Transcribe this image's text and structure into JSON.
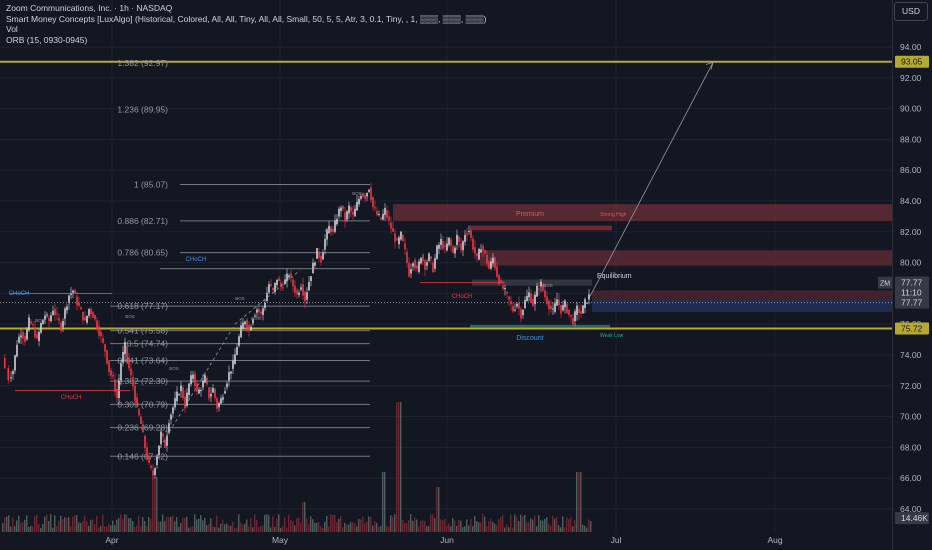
{
  "legend": {
    "title": "Zoom Communications, Inc. · 1h · NASDAQ",
    "indicator1": "Smart Money Concepts [LuxAlgo] (Historical, Colored, All, All, Tiny, All, All, Small, 50, 5, 5, Atr, 3, 0.1, Tiny, , 1, ▒▒▒, ▒▒▒, ▒▒▒)",
    "indicator2": "Vol",
    "indicator3": "ORB (15, 0930-0945)"
  },
  "currency": "USD",
  "colors": {
    "background": "#131722",
    "grid": "#1e222d",
    "up": "#d1d4dc",
    "down": "#f23645",
    "fib": "#9598a1",
    "key_level": "#b5a833",
    "premium_zone": "#5d2b33",
    "discount_zone": "#1f2d52",
    "bos": "#26a69a",
    "choch": "#f23645"
  },
  "price_axis": {
    "ticks": [
      "94.00",
      "92.00",
      "90.00",
      "88.00",
      "86.00",
      "84.00",
      "82.00",
      "80.00",
      "78.00",
      "76.00",
      "74.00",
      "72.00",
      "70.00",
      "68.00",
      "66.00",
      "64.00"
    ],
    "labels": [
      {
        "value": "93.05",
        "price": 93.05,
        "bg": "#b5a833",
        "fg": "#131722"
      },
      {
        "value": "77.77",
        "price": 78.7,
        "bg": "#363a45",
        "fg": "#d1d4dc"
      },
      {
        "value": "11:10",
        "price": 78.05,
        "bg": "#363a45",
        "fg": "#d1d4dc"
      },
      {
        "value": "77.77",
        "price": 77.4,
        "bg": "#363a45",
        "fg": "#d1d4dc"
      },
      {
        "value": "75.72",
        "price": 75.72,
        "bg": "#b5a833",
        "fg": "#131722"
      },
      {
        "value": "14.46K",
        "price": 63.4,
        "bg": "#363a45",
        "fg": "#d1d4dc"
      }
    ],
    "symbol_tag": "ZM"
  },
  "time_axis": [
    "Apr",
    "May",
    "Jun",
    "Jul",
    "Aug"
  ],
  "fib_levels": [
    {
      "label": "1.382 (92.97)",
      "price": 92.97
    },
    {
      "label": "1.236 (89.95)",
      "price": 89.95
    },
    {
      "label": "1 (85.07)",
      "price": 85.07
    },
    {
      "label": "0.886 (82.71)",
      "price": 82.71
    },
    {
      "label": "0.786 (80.65)",
      "price": 80.65
    },
    {
      "label": "0.618 (77.17)",
      "price": 77.17
    },
    {
      "label": "0.541 (75.58)",
      "price": 75.58
    },
    {
      "label": "0.5 (74.74)",
      "price": 74.74
    },
    {
      "label": "0.441 (73.64)",
      "price": 73.64
    },
    {
      "label": "0.382 (72.30)",
      "price": 72.3
    },
    {
      "label": "0.309 (70.79)",
      "price": 70.79
    },
    {
      "label": "0.236 (69.28)",
      "price": 69.28
    },
    {
      "label": "0.146 (67.42)",
      "price": 67.42
    }
  ],
  "key_levels": [
    93.05,
    75.72
  ],
  "annotations": {
    "premium": "Premium",
    "discount": "Discount",
    "equilibrium": "Equilibrium",
    "strong_high": "Strong High",
    "weak_low": "Weak Low",
    "choch_labels": [
      "CHoCH",
      "CHoCH",
      "CHoCH",
      "CHoCH"
    ],
    "bos_label": "BOS"
  },
  "chart_data": {
    "type": "candlestick",
    "symbol": "ZM",
    "timeframe": "1h",
    "ylim": [
      62.5,
      95.5
    ],
    "x_months": [
      "Apr",
      "May",
      "Jun",
      "Jul",
      "Aug"
    ],
    "close_path": [
      [
        3,
        73.8
      ],
      [
        10,
        72.5
      ],
      [
        14,
        73.0
      ],
      [
        18,
        74.8
      ],
      [
        22,
        75.5
      ],
      [
        26,
        75.0
      ],
      [
        30,
        76.2
      ],
      [
        34,
        75.8
      ],
      [
        38,
        74.9
      ],
      [
        42,
        76.0
      ],
      [
        46,
        76.6
      ],
      [
        50,
        76.2
      ],
      [
        54,
        77.0
      ],
      [
        58,
        76.4
      ],
      [
        62,
        75.8
      ],
      [
        66,
        76.9
      ],
      [
        70,
        77.9
      ],
      [
        74,
        78.2
      ],
      [
        78,
        77.4
      ],
      [
        82,
        76.8
      ],
      [
        86,
        76.1
      ],
      [
        90,
        77.0
      ],
      [
        94,
        76.6
      ],
      [
        98,
        75.9
      ],
      [
        102,
        75.1
      ],
      [
        106,
        74.3
      ],
      [
        110,
        73.0
      ],
      [
        114,
        72.4
      ],
      [
        118,
        71.2
      ],
      [
        122,
        73.5
      ],
      [
        126,
        74.6
      ],
      [
        130,
        73.1
      ],
      [
        134,
        72.0
      ],
      [
        138,
        70.5
      ],
      [
        142,
        69.5
      ],
      [
        146,
        68.0
      ],
      [
        150,
        66.8
      ],
      [
        154,
        66.2
      ],
      [
        158,
        67.5
      ],
      [
        162,
        68.9
      ],
      [
        166,
        68.1
      ],
      [
        170,
        69.8
      ],
      [
        174,
        70.6
      ],
      [
        178,
        71.4
      ],
      [
        182,
        71.9
      ],
      [
        186,
        70.7
      ],
      [
        190,
        72.1
      ],
      [
        194,
        72.8
      ],
      [
        198,
        71.5
      ],
      [
        202,
        71.9
      ],
      [
        206,
        72.5
      ],
      [
        210,
        71.3
      ],
      [
        214,
        71.8
      ],
      [
        218,
        70.6
      ],
      [
        222,
        71.1
      ],
      [
        226,
        71.9
      ],
      [
        230,
        72.8
      ],
      [
        234,
        73.4
      ],
      [
        238,
        74.6
      ],
      [
        242,
        75.7
      ],
      [
        246,
        76.3
      ],
      [
        250,
        75.6
      ],
      [
        254,
        76.5
      ],
      [
        258,
        77.0
      ],
      [
        262,
        76.6
      ],
      [
        266,
        77.5
      ],
      [
        270,
        78.6
      ],
      [
        274,
        78.1
      ],
      [
        278,
        79.0
      ],
      [
        282,
        78.4
      ],
      [
        286,
        78.8
      ],
      [
        290,
        79.3
      ],
      [
        294,
        78.5
      ],
      [
        298,
        77.9
      ],
      [
        302,
        78.6
      ],
      [
        306,
        77.6
      ],
      [
        310,
        78.8
      ],
      [
        314,
        79.8
      ],
      [
        318,
        80.7
      ],
      [
        322,
        80.2
      ],
      [
        326,
        81.5
      ],
      [
        330,
        82.3
      ],
      [
        334,
        82.0
      ],
      [
        338,
        83.0
      ],
      [
        342,
        83.7
      ],
      [
        346,
        82.8
      ],
      [
        350,
        83.6
      ],
      [
        354,
        83.0
      ],
      [
        358,
        83.8
      ],
      [
        362,
        84.5
      ],
      [
        366,
        84.3
      ],
      [
        370,
        84.9
      ],
      [
        374,
        83.6
      ],
      [
        378,
        83.1
      ],
      [
        382,
        82.8
      ],
      [
        386,
        83.4
      ],
      [
        390,
        82.6
      ],
      [
        394,
        81.9
      ],
      [
        398,
        81.2
      ],
      [
        402,
        81.8
      ],
      [
        406,
        80.7
      ],
      [
        410,
        79.3
      ],
      [
        414,
        80.2
      ],
      [
        418,
        79.4
      ],
      [
        422,
        80.5
      ],
      [
        426,
        79.8
      ],
      [
        430,
        80.4
      ],
      [
        434,
        79.6
      ],
      [
        438,
        80.9
      ],
      [
        442,
        81.4
      ],
      [
        446,
        80.8
      ],
      [
        450,
        81.5
      ],
      [
        454,
        80.6
      ],
      [
        458,
        81.7
      ],
      [
        462,
        80.8
      ],
      [
        466,
        81.9
      ],
      [
        470,
        82.1
      ],
      [
        474,
        81.0
      ],
      [
        478,
        80.2
      ],
      [
        482,
        81.1
      ],
      [
        486,
        80.5
      ],
      [
        490,
        79.6
      ],
      [
        494,
        80.3
      ],
      [
        498,
        79.2
      ],
      [
        502,
        78.5
      ],
      [
        506,
        78.1
      ],
      [
        510,
        77.5
      ],
      [
        514,
        76.9
      ],
      [
        518,
        77.4
      ],
      [
        522,
        76.6
      ],
      [
        526,
        77.5
      ],
      [
        530,
        78.0
      ],
      [
        534,
        77.3
      ],
      [
        538,
        78.3
      ],
      [
        542,
        78.6
      ],
      [
        546,
        77.8
      ],
      [
        550,
        77.2
      ],
      [
        554,
        76.8
      ],
      [
        558,
        77.6
      ],
      [
        562,
        76.9
      ],
      [
        566,
        77.3
      ],
      [
        570,
        76.6
      ],
      [
        574,
        76.2
      ],
      [
        578,
        77.0
      ],
      [
        582,
        76.7
      ],
      [
        586,
        77.4
      ],
      [
        590,
        77.8
      ]
    ],
    "projection": {
      "from": [
        590,
        77.8
      ],
      "to": [
        713,
        93.0
      ]
    },
    "volume_profile": "spikes around late April, mid-June and late June",
    "annotations": [
      "Premium",
      "Discount",
      "Equilibrium",
      "Strong High",
      "Weak Low"
    ]
  }
}
